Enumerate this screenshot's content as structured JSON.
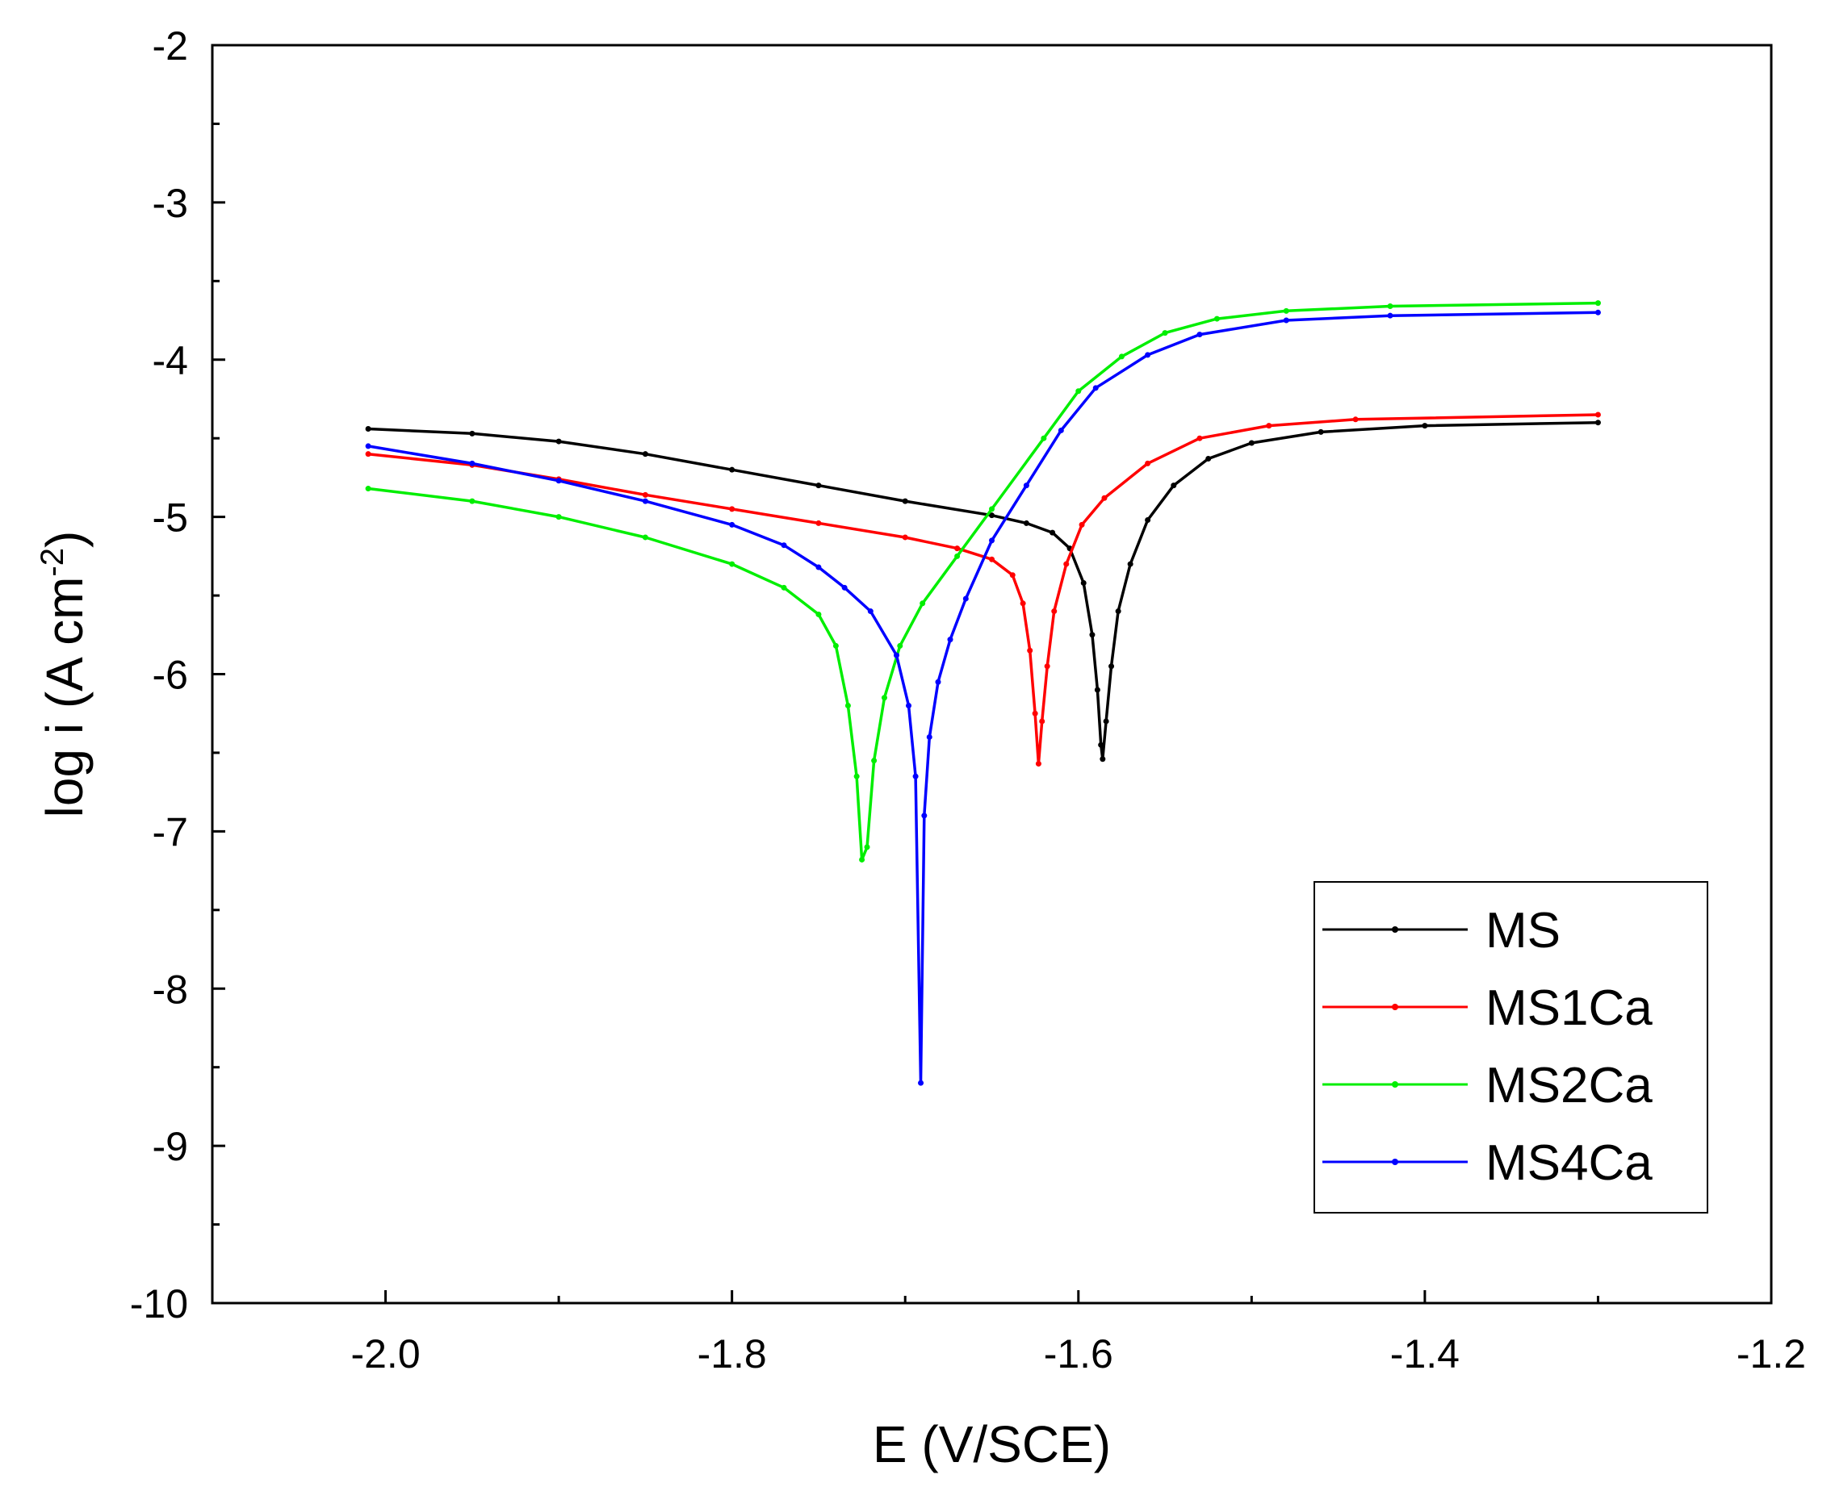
{
  "chart_data": {
    "type": "line",
    "title": "",
    "xlabel": "E (V/SCE)",
    "ylabel_main": "log i (A cm",
    "ylabel_sup": "-2",
    "ylabel_end": ")",
    "xlim": [
      -2.1,
      -1.2
    ],
    "ylim": [
      -10,
      -2
    ],
    "xticks": [
      {
        "value": -2.0,
        "label": "-2.0"
      },
      {
        "value": -1.8,
        "label": "-1.8"
      },
      {
        "value": -1.6,
        "label": "-1.6"
      },
      {
        "value": -1.4,
        "label": "-1.4"
      },
      {
        "value": -1.2,
        "label": "-1.2"
      }
    ],
    "yticks": [
      {
        "value": -2,
        "label": "-2"
      },
      {
        "value": -3,
        "label": "-3"
      },
      {
        "value": -4,
        "label": "-4"
      },
      {
        "value": -5,
        "label": "-5"
      },
      {
        "value": -6,
        "label": "-6"
      },
      {
        "value": -7,
        "label": "-7"
      },
      {
        "value": -8,
        "label": "-8"
      },
      {
        "value": -9,
        "label": "-9"
      },
      {
        "value": -10,
        "label": "-10"
      }
    ],
    "grid": false,
    "legend_position": "bottom-right",
    "series": [
      {
        "name": "MS",
        "color": "#000000",
        "points": [
          [
            -2.01,
            -4.44
          ],
          [
            -1.95,
            -4.47
          ],
          [
            -1.9,
            -4.52
          ],
          [
            -1.85,
            -4.6
          ],
          [
            -1.8,
            -4.7
          ],
          [
            -1.75,
            -4.8
          ],
          [
            -1.7,
            -4.9
          ],
          [
            -1.65,
            -4.99
          ],
          [
            -1.63,
            -5.04
          ],
          [
            -1.615,
            -5.1
          ],
          [
            -1.605,
            -5.2
          ],
          [
            -1.597,
            -5.42
          ],
          [
            -1.592,
            -5.75
          ],
          [
            -1.589,
            -6.1
          ],
          [
            -1.587,
            -6.45
          ],
          [
            -1.586,
            -6.54
          ],
          [
            -1.584,
            -6.3
          ],
          [
            -1.581,
            -5.95
          ],
          [
            -1.577,
            -5.6
          ],
          [
            -1.57,
            -5.3
          ],
          [
            -1.56,
            -5.02
          ],
          [
            -1.545,
            -4.8
          ],
          [
            -1.525,
            -4.63
          ],
          [
            -1.5,
            -4.53
          ],
          [
            -1.46,
            -4.46
          ],
          [
            -1.4,
            -4.42
          ],
          [
            -1.3,
            -4.4
          ]
        ]
      },
      {
        "name": "MS1Ca",
        "color": "#ff0000",
        "points": [
          [
            -2.01,
            -4.6
          ],
          [
            -1.95,
            -4.67
          ],
          [
            -1.9,
            -4.76
          ],
          [
            -1.85,
            -4.86
          ],
          [
            -1.8,
            -4.95
          ],
          [
            -1.75,
            -5.04
          ],
          [
            -1.7,
            -5.13
          ],
          [
            -1.67,
            -5.2
          ],
          [
            -1.65,
            -5.27
          ],
          [
            -1.638,
            -5.37
          ],
          [
            -1.632,
            -5.55
          ],
          [
            -1.628,
            -5.85
          ],
          [
            -1.625,
            -6.25
          ],
          [
            -1.623,
            -6.57
          ],
          [
            -1.621,
            -6.3
          ],
          [
            -1.618,
            -5.95
          ],
          [
            -1.614,
            -5.6
          ],
          [
            -1.607,
            -5.3
          ],
          [
            -1.598,
            -5.05
          ],
          [
            -1.585,
            -4.88
          ],
          [
            -1.56,
            -4.66
          ],
          [
            -1.53,
            -4.5
          ],
          [
            -1.49,
            -4.42
          ],
          [
            -1.44,
            -4.38
          ],
          [
            -1.3,
            -4.35
          ]
        ]
      },
      {
        "name": "MS2Ca",
        "color": "#00ee00",
        "points": [
          [
            -2.01,
            -4.82
          ],
          [
            -1.95,
            -4.9
          ],
          [
            -1.9,
            -5.0
          ],
          [
            -1.85,
            -5.13
          ],
          [
            -1.8,
            -5.3
          ],
          [
            -1.77,
            -5.45
          ],
          [
            -1.75,
            -5.62
          ],
          [
            -1.74,
            -5.82
          ],
          [
            -1.733,
            -6.2
          ],
          [
            -1.728,
            -6.65
          ],
          [
            -1.725,
            -7.18
          ],
          [
            -1.722,
            -7.1
          ],
          [
            -1.718,
            -6.55
          ],
          [
            -1.712,
            -6.15
          ],
          [
            -1.703,
            -5.82
          ],
          [
            -1.69,
            -5.55
          ],
          [
            -1.67,
            -5.25
          ],
          [
            -1.65,
            -4.95
          ],
          [
            -1.62,
            -4.5
          ],
          [
            -1.6,
            -4.2
          ],
          [
            -1.575,
            -3.98
          ],
          [
            -1.55,
            -3.83
          ],
          [
            -1.52,
            -3.74
          ],
          [
            -1.48,
            -3.69
          ],
          [
            -1.42,
            -3.66
          ],
          [
            -1.3,
            -3.64
          ]
        ]
      },
      {
        "name": "MS4Ca",
        "color": "#0000ff",
        "points": [
          [
            -2.01,
            -4.55
          ],
          [
            -1.95,
            -4.66
          ],
          [
            -1.9,
            -4.77
          ],
          [
            -1.85,
            -4.9
          ],
          [
            -1.8,
            -5.05
          ],
          [
            -1.77,
            -5.18
          ],
          [
            -1.75,
            -5.32
          ],
          [
            -1.735,
            -5.45
          ],
          [
            -1.72,
            -5.6
          ],
          [
            -1.705,
            -5.88
          ],
          [
            -1.698,
            -6.2
          ],
          [
            -1.694,
            -6.65
          ],
          [
            -1.691,
            -8.6
          ],
          [
            -1.689,
            -6.9
          ],
          [
            -1.686,
            -6.4
          ],
          [
            -1.681,
            -6.05
          ],
          [
            -1.674,
            -5.78
          ],
          [
            -1.665,
            -5.52
          ],
          [
            -1.65,
            -5.15
          ],
          [
            -1.63,
            -4.8
          ],
          [
            -1.61,
            -4.45
          ],
          [
            -1.59,
            -4.18
          ],
          [
            -1.56,
            -3.97
          ],
          [
            -1.53,
            -3.84
          ],
          [
            -1.48,
            -3.75
          ],
          [
            -1.42,
            -3.72
          ],
          [
            -1.3,
            -3.7
          ]
        ]
      }
    ]
  }
}
